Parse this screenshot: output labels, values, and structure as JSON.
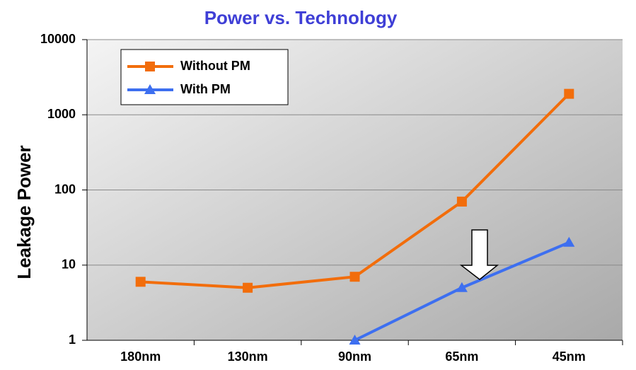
{
  "chart_data": {
    "type": "line",
    "title": "Power vs. Technology",
    "y_label": "Leakage Power",
    "categories": [
      "180nm",
      "130nm",
      "90nm",
      "65nm",
      "45nm"
    ],
    "series": [
      {
        "name": "Without PM",
        "color": "#f26d0b",
        "marker": "square",
        "values": [
          6,
          5,
          7,
          70,
          1900
        ]
      },
      {
        "name": "With PM",
        "color": "#3d6ff0",
        "marker": "triangle",
        "values": [
          null,
          null,
          1,
          5,
          20
        ]
      }
    ],
    "ylim": [
      1,
      10000
    ],
    "yticks": [
      1,
      10,
      100,
      1000,
      10000
    ],
    "log_y": true,
    "grid": true,
    "legend": "upper left"
  }
}
